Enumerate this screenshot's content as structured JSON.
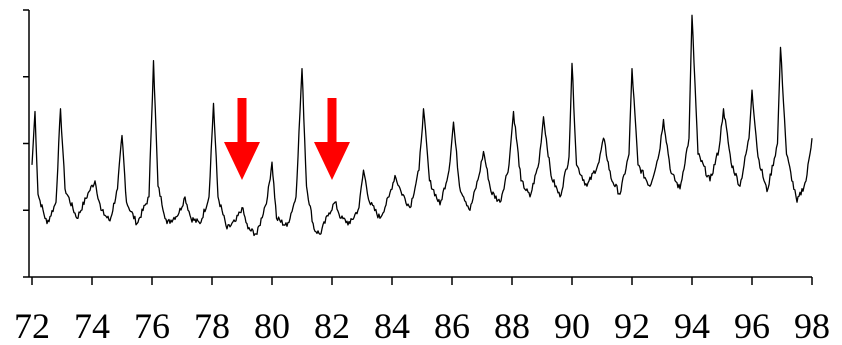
{
  "chart_data": {
    "type": "line",
    "title": "",
    "xlabel": "",
    "ylabel": "",
    "x_ticks": [
      72,
      74,
      76,
      78,
      80,
      82,
      84,
      86,
      88,
      90,
      92,
      94,
      96,
      98
    ],
    "x_tick_labels": [
      "72",
      "74",
      "76",
      "78",
      "80",
      "82",
      "84",
      "86",
      "88",
      "90",
      "92",
      "94",
      "96",
      "98"
    ],
    "xlim": [
      72,
      98
    ],
    "y_tick_count": 5,
    "y_tick_labels": [],
    "ylim": [
      0,
      1
    ],
    "grid": false,
    "series": [
      {
        "color": "#000000",
        "values": [
          [
            72.0,
            0.42
          ],
          [
            72.1,
            0.62
          ],
          [
            72.2,
            0.31
          ],
          [
            72.5,
            0.2
          ],
          [
            72.8,
            0.28
          ],
          [
            72.95,
            0.63
          ],
          [
            73.1,
            0.33
          ],
          [
            73.5,
            0.22
          ],
          [
            73.9,
            0.32
          ],
          [
            74.1,
            0.36
          ],
          [
            74.3,
            0.25
          ],
          [
            74.6,
            0.21
          ],
          [
            74.85,
            0.33
          ],
          [
            75.0,
            0.53
          ],
          [
            75.15,
            0.28
          ],
          [
            75.5,
            0.2
          ],
          [
            75.9,
            0.3
          ],
          [
            76.05,
            0.81
          ],
          [
            76.2,
            0.34
          ],
          [
            76.5,
            0.2
          ],
          [
            76.9,
            0.24
          ],
          [
            77.1,
            0.3
          ],
          [
            77.3,
            0.22
          ],
          [
            77.6,
            0.2
          ],
          [
            77.9,
            0.3
          ],
          [
            78.05,
            0.65
          ],
          [
            78.2,
            0.3
          ],
          [
            78.5,
            0.18
          ],
          [
            78.8,
            0.21
          ],
          [
            79.0,
            0.26
          ],
          [
            79.2,
            0.18
          ],
          [
            79.5,
            0.16
          ],
          [
            79.85,
            0.3
          ],
          [
            80.0,
            0.43
          ],
          [
            80.15,
            0.22
          ],
          [
            80.5,
            0.19
          ],
          [
            80.8,
            0.3
          ],
          [
            81.0,
            0.78
          ],
          [
            81.15,
            0.34
          ],
          [
            81.4,
            0.18
          ],
          [
            81.6,
            0.16
          ],
          [
            81.9,
            0.24
          ],
          [
            82.1,
            0.28
          ],
          [
            82.3,
            0.22
          ],
          [
            82.6,
            0.2
          ],
          [
            82.9,
            0.26
          ],
          [
            83.05,
            0.4
          ],
          [
            83.25,
            0.28
          ],
          [
            83.6,
            0.22
          ],
          [
            83.9,
            0.3
          ],
          [
            84.1,
            0.38
          ],
          [
            84.3,
            0.32
          ],
          [
            84.6,
            0.26
          ],
          [
            84.9,
            0.4
          ],
          [
            85.05,
            0.63
          ],
          [
            85.25,
            0.36
          ],
          [
            85.6,
            0.27
          ],
          [
            85.9,
            0.4
          ],
          [
            86.05,
            0.58
          ],
          [
            86.25,
            0.34
          ],
          [
            86.6,
            0.25
          ],
          [
            86.9,
            0.38
          ],
          [
            87.05,
            0.47
          ],
          [
            87.3,
            0.32
          ],
          [
            87.6,
            0.28
          ],
          [
            87.9,
            0.42
          ],
          [
            88.05,
            0.62
          ],
          [
            88.3,
            0.36
          ],
          [
            88.6,
            0.3
          ],
          [
            88.9,
            0.43
          ],
          [
            89.05,
            0.6
          ],
          [
            89.3,
            0.38
          ],
          [
            89.6,
            0.3
          ],
          [
            89.9,
            0.45
          ],
          [
            90.0,
            0.8
          ],
          [
            90.15,
            0.42
          ],
          [
            90.5,
            0.34
          ],
          [
            90.9,
            0.43
          ],
          [
            91.05,
            0.52
          ],
          [
            91.3,
            0.37
          ],
          [
            91.6,
            0.31
          ],
          [
            91.9,
            0.46
          ],
          [
            92.0,
            0.78
          ],
          [
            92.2,
            0.42
          ],
          [
            92.6,
            0.34
          ],
          [
            92.9,
            0.46
          ],
          [
            93.05,
            0.59
          ],
          [
            93.3,
            0.39
          ],
          [
            93.6,
            0.33
          ],
          [
            93.9,
            0.52
          ],
          [
            94.0,
            0.98
          ],
          [
            94.2,
            0.46
          ],
          [
            94.6,
            0.36
          ],
          [
            94.9,
            0.48
          ],
          [
            95.05,
            0.63
          ],
          [
            95.3,
            0.43
          ],
          [
            95.6,
            0.34
          ],
          [
            95.9,
            0.52
          ],
          [
            96.0,
            0.7
          ],
          [
            96.2,
            0.45
          ],
          [
            96.5,
            0.32
          ],
          [
            96.85,
            0.5
          ],
          [
            96.95,
            0.86
          ],
          [
            97.15,
            0.46
          ],
          [
            97.5,
            0.28
          ],
          [
            97.8,
            0.36
          ],
          [
            98.0,
            0.52
          ]
        ]
      }
    ],
    "annotations": [
      {
        "type": "arrow",
        "x": 79.0,
        "direction": "down",
        "color": "#ff0000"
      },
      {
        "type": "arrow",
        "x": 82.0,
        "direction": "down",
        "color": "#ff0000"
      }
    ]
  }
}
